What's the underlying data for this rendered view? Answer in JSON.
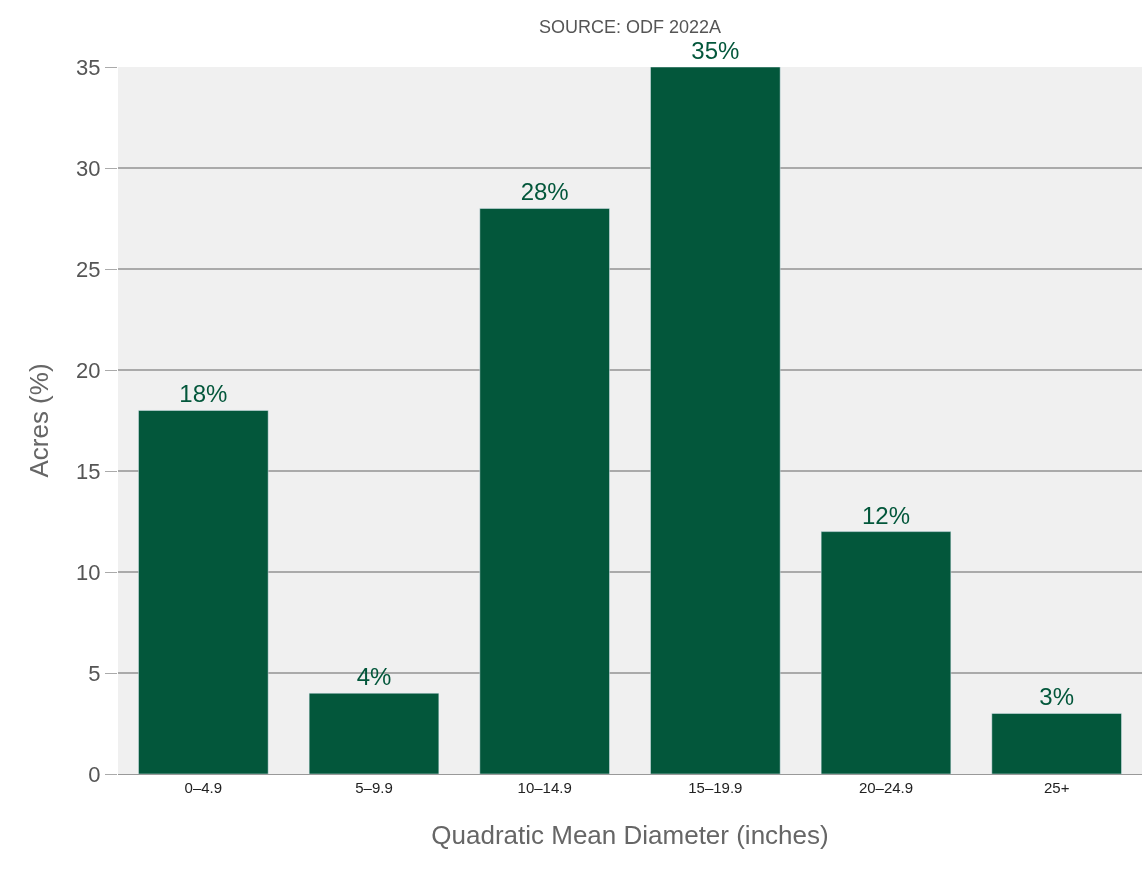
{
  "chart_data": {
    "type": "bar",
    "xlabel": "Quadratic Mean Diameter (inches)",
    "ylabel": "Acres (%)",
    "annotations": [
      "SOURCE: ODF 2022A"
    ],
    "categories": [
      "0–4.9",
      "5–9.9",
      "10–14.9",
      "15–19.9",
      "20–24.9",
      "25+"
    ],
    "values": [
      18,
      4,
      28,
      35,
      12,
      3
    ],
    "value_labels": [
      "18%",
      "4%",
      "28%",
      "35%",
      "12%",
      "3%"
    ],
    "color": "#03573b",
    "ylim": [
      0,
      35
    ],
    "yticks": [
      0,
      5,
      10,
      15,
      20,
      25,
      30,
      35
    ],
    "grid": "y",
    "legend": false
  }
}
